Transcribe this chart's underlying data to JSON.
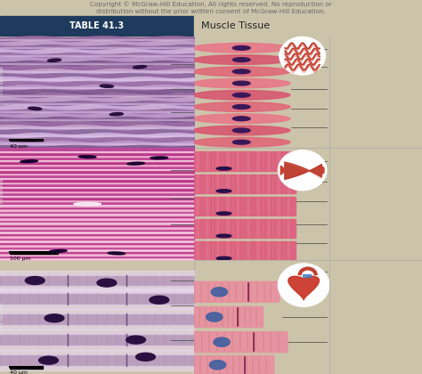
{
  "title": "TABLE 41.3",
  "subtitle": "Muscle Tissue",
  "header_bg": "#1e3a5c",
  "header_text_color": "#ffffff",
  "subtitle_bg": "#ccc4aa",
  "body_bg": "#ccc4aa",
  "copyright_text": "Copyright © McGraw-Hill Education. All rights reserved. No reproduction or\ndistribution without the prior written consent of McGraw-Hill Education.",
  "copyright_color": "#666666",
  "scale_bar_row1_left": "40 μm",
  "scale_bar_row2_left": "100 μm",
  "scale_bar_row3_left": "40 μm",
  "photo_credit": "©Ed Reschke",
  "right_col_bg": "#ccc4aa",
  "grid_line_color": "#aaaaaa",
  "label_line_color": "#444444",
  "row1_photo_bg": "#c8a0c8",
  "row1_photo_stripe_dark": "#9060a0",
  "row1_photo_stripe_light": "#dab8e0",
  "row2_photo_bg": "#d060a0",
  "row2_photo_stripe_dark": "#b84898",
  "row2_photo_stripe_light": "#f0a0c8",
  "row3_photo_bg": "#d8b8d8",
  "row3_photo_stripe_dark": "#a878a8",
  "row3_photo_stripe_light": "#eedaee",
  "diag1_bg": "#e87898",
  "diag2_bg": "#e05888",
  "diag3_bg": "#f0a0b0",
  "nucleus_color": "#3a2060",
  "label_color": "#5a6060"
}
